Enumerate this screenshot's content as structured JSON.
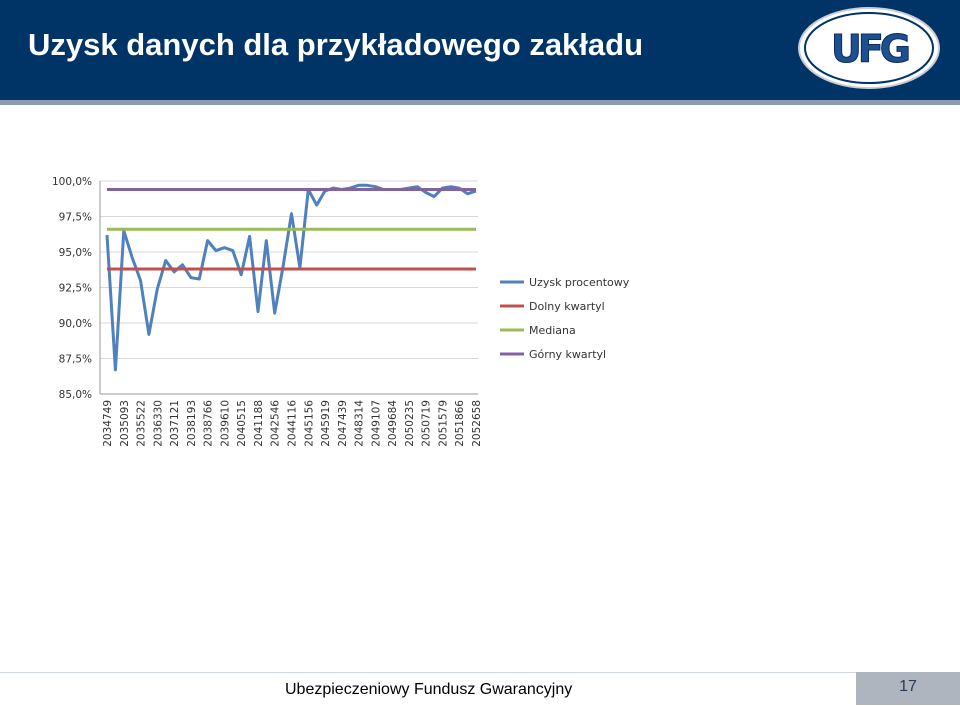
{
  "slide": {
    "title": "Uzysk danych dla przykładowego zakładu",
    "logo_text": "UFG",
    "footer_text": "Ubezpieczeniowy Fundusz Gwarancyjny",
    "page_number": "17"
  },
  "colors": {
    "header_bg": "#003366",
    "series_uzysk": "#4f81bd",
    "series_dolny": "#c0504d",
    "series_mediana": "#9bbb59",
    "series_gorny": "#8064a2"
  },
  "chart_data": {
    "type": "line",
    "ylim": [
      0.85,
      1.0
    ],
    "yticks": [
      "100,0%",
      "97,5%",
      "95,0%",
      "92,5%",
      "90,0%",
      "87,5%",
      "85,0%"
    ],
    "ytick_values": [
      1.0,
      0.975,
      0.95,
      0.925,
      0.9,
      0.875,
      0.85
    ],
    "x_tick_labels": [
      "2034749",
      "2035093",
      "2035522",
      "2036330",
      "2037121",
      "2038193",
      "2038766",
      "2039610",
      "2040515",
      "2041188",
      "2042546",
      "2044116",
      "2045156",
      "2045919",
      "2047439",
      "2048314",
      "2049107",
      "2049684",
      "2050235",
      "2050719",
      "2051579",
      "2051866",
      "2052658"
    ],
    "grid": true,
    "legend_position": "right",
    "series": [
      {
        "name": "Uzysk procentowy",
        "values": [
          0.962,
          0.867,
          0.965,
          0.946,
          0.93,
          0.892,
          0.924,
          0.944,
          0.936,
          0.941,
          0.932,
          0.931,
          0.958,
          0.951,
          0.953,
          0.951,
          0.934,
          0.961,
          0.908,
          0.958,
          0.907,
          0.94,
          0.977,
          0.939,
          0.994,
          0.983,
          0.993,
          0.995,
          0.994,
          0.995,
          0.997,
          0.997,
          0.996,
          0.994,
          0.994,
          0.994,
          0.995,
          0.996,
          0.992,
          0.989,
          0.995,
          0.996,
          0.995,
          0.991,
          0.993
        ]
      },
      {
        "name": "Dolny kwartyl",
        "values": [
          0.938,
          0.938
        ]
      },
      {
        "name": "Mediana",
        "values": [
          0.966,
          0.966
        ]
      },
      {
        "name": "Górny kwartyl",
        "values": [
          0.994,
          0.994
        ]
      }
    ]
  }
}
